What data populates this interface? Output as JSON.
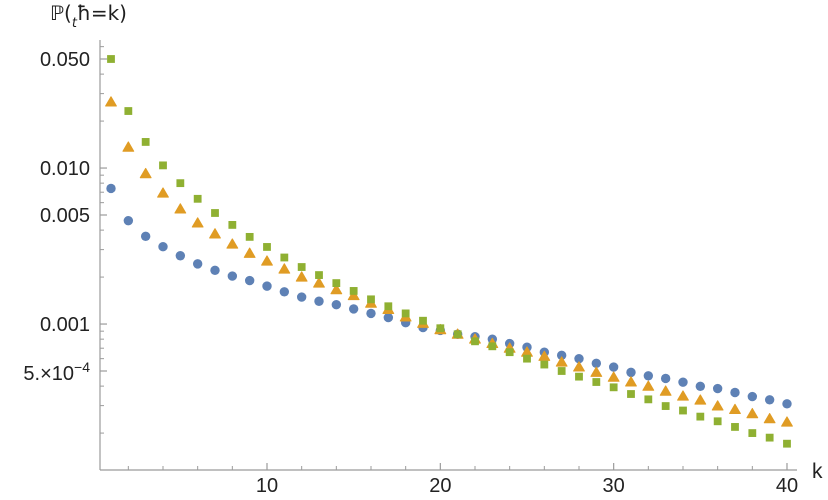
{
  "title": {
    "pre": "ℙ(",
    "sub": "t",
    "post": "ħ=k)"
  },
  "axes": {
    "x": {
      "label": "k",
      "major": [
        {
          "v": 10,
          "t": "10"
        },
        {
          "v": 20,
          "t": "20"
        },
        {
          "v": 30,
          "t": "30"
        },
        {
          "v": 40,
          "t": "40"
        }
      ],
      "minor": [
        2,
        4,
        6,
        8,
        12,
        14,
        16,
        18,
        22,
        24,
        26,
        28,
        32,
        34,
        36,
        38
      ]
    },
    "y": {
      "major": [
        {
          "v": 0.05,
          "t": "0.050"
        },
        {
          "v": 0.01,
          "t": "0.010"
        },
        {
          "v": 0.005,
          "t": "0.005"
        },
        {
          "v": 0.001,
          "t": "0.001"
        },
        {
          "v": 0.0005,
          "t": "5.×10",
          "sup": "−4"
        }
      ],
      "minor": [
        0.06,
        0.04,
        0.03,
        0.02,
        0.009,
        0.008,
        0.007,
        0.006,
        0.004,
        0.003,
        0.002,
        0.0009,
        0.0008,
        0.0007,
        0.0006,
        0.0004,
        0.0003,
        0.0002
      ]
    }
  },
  "chart_data": {
    "type": "scatter",
    "title": "ℙ(ₜħ=k)",
    "xlabel": "k",
    "ylabel": "ℙ(ₜħ=k)",
    "yscale": "log",
    "xlim": [
      0,
      41
    ],
    "ylim": [
      0.00012,
      0.068
    ],
    "grid": false,
    "legend": "none",
    "x": [
      1,
      2,
      3,
      4,
      5,
      6,
      7,
      8,
      9,
      10,
      11,
      12,
      13,
      14,
      15,
      16,
      17,
      18,
      19,
      20,
      21,
      22,
      23,
      24,
      25,
      26,
      27,
      28,
      29,
      30,
      31,
      32,
      33,
      34,
      35,
      36,
      37,
      38,
      39,
      40
    ],
    "series": [
      {
        "name": "series-blue-circles",
        "marker": "circle",
        "color": "#5e81b5",
        "values": [
          0.0074,
          0.0046,
          0.00365,
          0.00313,
          0.00274,
          0.00243,
          0.00221,
          0.00203,
          0.0019,
          0.00175,
          0.00161,
          0.00149,
          0.0014,
          0.00133,
          0.00125,
          0.00117,
          0.0011,
          0.00102,
          0.00095,
          0.00091,
          0.00086,
          0.00083,
          0.0008,
          0.00075,
          0.00071,
          0.00066,
          0.00063,
          0.0006,
          0.00056,
          0.00053,
          0.00049,
          0.000466,
          0.000448,
          0.000424,
          0.000399,
          0.000386,
          0.000364,
          0.000343,
          0.000327,
          0.000308
        ]
      },
      {
        "name": "series-orange-triangles",
        "marker": "triangle",
        "color": "#e09c24",
        "values": [
          0.0265,
          0.0136,
          0.0092,
          0.0069,
          0.00546,
          0.00444,
          0.00378,
          0.00325,
          0.00284,
          0.00253,
          0.00225,
          0.002,
          0.00183,
          0.00166,
          0.00152,
          0.00136,
          0.00124,
          0.00111,
          0.00101,
          0.00092,
          0.00086,
          0.0008,
          0.00075,
          0.0007,
          0.00066,
          0.00062,
          0.00057,
          0.00053,
          0.00049,
          0.000456,
          0.000425,
          0.000399,
          0.000371,
          0.000345,
          0.000325,
          0.000298,
          0.000283,
          0.000266,
          0.000247,
          0.000235
        ]
      },
      {
        "name": "series-green-squares",
        "marker": "square",
        "color": "#8fb032",
        "values": [
          0.05,
          0.0232,
          0.0147,
          0.0104,
          0.008,
          0.00635,
          0.00515,
          0.00432,
          0.00362,
          0.00312,
          0.00267,
          0.00232,
          0.00206,
          0.00183,
          0.00163,
          0.00144,
          0.0013,
          0.00117,
          0.00105,
          0.00094,
          0.00086,
          0.000775,
          0.00072,
          0.00066,
          0.0006,
          0.00055,
          0.0005,
          0.00046,
          0.000425,
          0.000393,
          0.000356,
          0.000329,
          0.000298,
          0.000279,
          0.000255,
          0.000238,
          0.000219,
          0.0002,
          0.000187,
          0.000171
        ]
      }
    ]
  },
  "colors": {
    "axis": "#9b9b9b",
    "tick_label": "#222222",
    "background": "#ffffff"
  }
}
